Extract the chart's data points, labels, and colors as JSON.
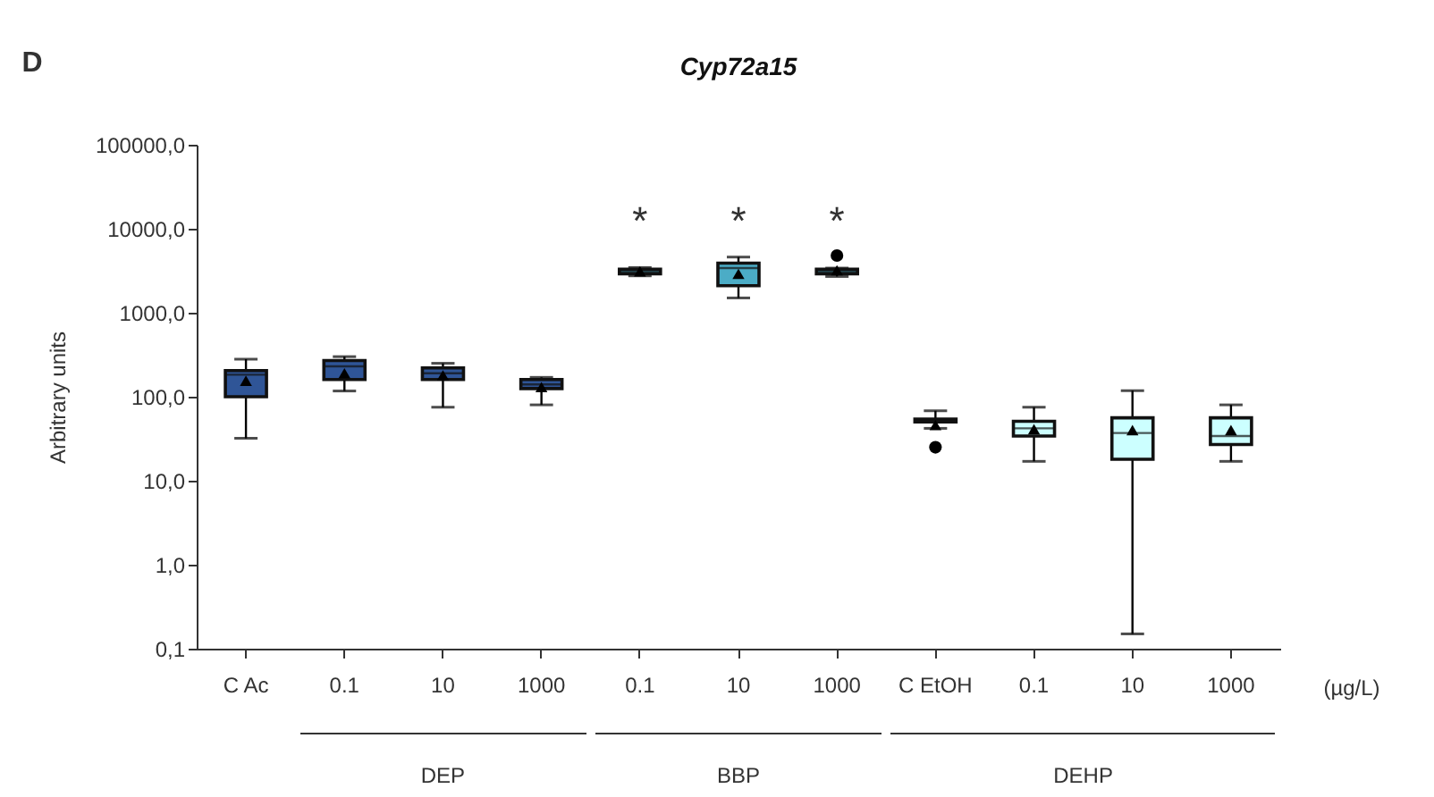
{
  "chart_data": {
    "type": "box",
    "title": "Cyp72a15",
    "ylabel": "Arbitrary units",
    "categories": [
      "C Ac",
      "0.1",
      "10",
      "1000",
      "0.1",
      "10",
      "1000",
      "C EtOH",
      "0.1",
      "10",
      "1000"
    ],
    "colors": [
      "#2f5597",
      "#2f5597",
      "#2f5597",
      "#2f5597",
      "#4bacc6",
      "#4bacc6",
      "#4bacc6",
      "#ccffff",
      "#ccffff",
      "#ccffff",
      "#ccffff"
    ],
    "boxes": [
      {
        "low": 32,
        "q1": 100,
        "median": 183,
        "q3": 205,
        "high": 280,
        "mean": 155
      },
      {
        "low": 117,
        "q1": 160,
        "median": 230,
        "q3": 270,
        "high": 300,
        "mean": 190
      },
      {
        "low": 75,
        "q1": 160,
        "median": 190,
        "q3": 220,
        "high": 250,
        "mean": 180
      },
      {
        "low": 80,
        "q1": 125,
        "median": 140,
        "q3": 160,
        "high": 170,
        "mean": 130
      },
      {
        "low": 2750,
        "q1": 2900,
        "median": 3100,
        "q3": 3300,
        "high": 3450,
        "mean": 3100
      },
      {
        "low": 1500,
        "q1": 2100,
        "median": 3400,
        "q3": 3900,
        "high": 4600,
        "mean": 2900
      },
      {
        "low": 2700,
        "q1": 2900,
        "median": 3100,
        "q3": 3300,
        "high": 3400,
        "mean": 3200,
        "outliers": [
          4800
        ]
      },
      {
        "low": 42,
        "q1": 50,
        "median": 52,
        "q3": 54,
        "high": 68,
        "mean": 46,
        "outliers": [
          25
        ]
      },
      {
        "low": 17,
        "q1": 34,
        "median": 42,
        "q3": 51,
        "high": 75,
        "mean": 41
      },
      {
        "low": 0.15,
        "q1": 18,
        "median": 37,
        "q3": 56,
        "high": 118,
        "mean": 40
      },
      {
        "low": 17,
        "q1": 27,
        "median": 34,
        "q3": 56,
        "high": 80,
        "mean": 40
      }
    ],
    "log": true,
    "ylim": [
      0.1,
      100000
    ],
    "yticks": [
      {
        "value": 0.1,
        "label": "0,1"
      },
      {
        "value": 1,
        "label": "1,0"
      },
      {
        "value": 10,
        "label": "10,0"
      },
      {
        "value": 100,
        "label": "100,0"
      },
      {
        "value": 1000,
        "label": "1000,0"
      },
      {
        "value": 10000,
        "label": "10000,0"
      },
      {
        "value": 100000,
        "label": "100000,0"
      }
    ],
    "marker": "triangle",
    "grid": false,
    "annotations": [
      "D",
      "*",
      "*",
      "*",
      "(µg/L)",
      "DEP",
      "BBP",
      "DEHP"
    ]
  }
}
